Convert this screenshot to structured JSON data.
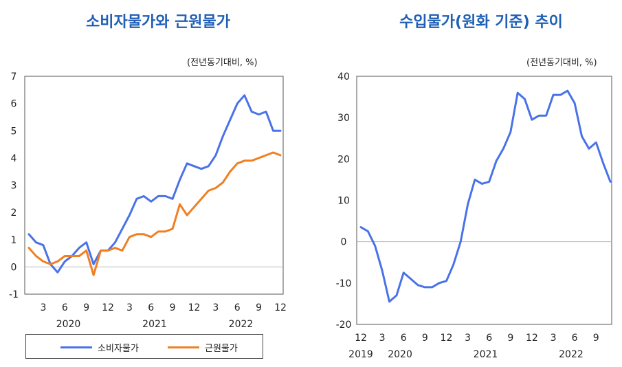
{
  "chart_data": [
    {
      "type": "line",
      "title": "소비자물가와 근원물가",
      "unit": "(전년동기대비, %)",
      "ylim": [
        -1,
        7
      ],
      "yticks": [
        -1,
        0,
        1,
        2,
        3,
        4,
        5,
        6,
        7
      ],
      "grid": false,
      "legend": "bottom",
      "x_tick_labels": [
        "3",
        "6",
        "9",
        "12",
        "3",
        "6",
        "9",
        "12",
        "3",
        "6",
        "9",
        "12"
      ],
      "year_labels": [
        "2020",
        "2021",
        "2022"
      ],
      "months_count": 36,
      "series": [
        {
          "name": "소비자물가",
          "color": "#4a72e8",
          "values": [
            1.2,
            0.9,
            0.8,
            0.1,
            -0.2,
            0.2,
            0.4,
            0.7,
            0.9,
            0.1,
            0.6,
            0.6,
            0.9,
            1.4,
            1.9,
            2.5,
            2.6,
            2.4,
            2.6,
            2.6,
            2.5,
            3.2,
            3.8,
            3.7,
            3.6,
            3.7,
            4.1,
            4.8,
            5.4,
            6.0,
            6.3,
            5.7,
            5.6,
            5.7,
            5.0,
            5.0
          ]
        },
        {
          "name": "근원물가",
          "color": "#f07f22",
          "values": [
            0.7,
            0.4,
            0.2,
            0.1,
            0.2,
            0.4,
            0.4,
            0.4,
            0.6,
            -0.3,
            0.6,
            0.6,
            0.7,
            0.6,
            1.1,
            1.2,
            1.2,
            1.1,
            1.3,
            1.3,
            1.4,
            2.3,
            1.9,
            2.2,
            2.5,
            2.8,
            2.9,
            3.1,
            3.5,
            3.8,
            3.9,
            3.9,
            4.0,
            4.1,
            4.2,
            4.1
          ]
        }
      ]
    },
    {
      "type": "line",
      "title": "수입물가(원화 기준) 추이",
      "unit": "(전년동기대비, %)",
      "ylim": [
        -20,
        40
      ],
      "yticks": [
        -20,
        -10,
        0,
        10,
        20,
        30,
        40
      ],
      "grid": false,
      "x_tick_labels": [
        "12",
        "3",
        "6",
        "9",
        "12",
        "3",
        "6",
        "9",
        "12",
        "3",
        "6",
        "9"
      ],
      "year_labels": [
        "2019",
        "2020",
        "2021",
        "2022"
      ],
      "months_count": 36,
      "series": [
        {
          "color": "#4a72e8",
          "values": [
            3.5,
            2.5,
            -1.0,
            -7.0,
            -14.5,
            -13.0,
            -7.5,
            -9.0,
            -10.5,
            -11.0,
            -11.0,
            -10.0,
            -9.5,
            -5.5,
            0.0,
            9.0,
            15.0,
            14.0,
            14.5,
            19.5,
            22.5,
            26.5,
            36.0,
            34.5,
            29.5,
            30.5,
            30.5,
            35.5,
            35.5,
            36.5,
            33.5,
            25.5,
            22.5,
            24.0,
            19.0,
            14.5
          ]
        }
      ]
    }
  ]
}
